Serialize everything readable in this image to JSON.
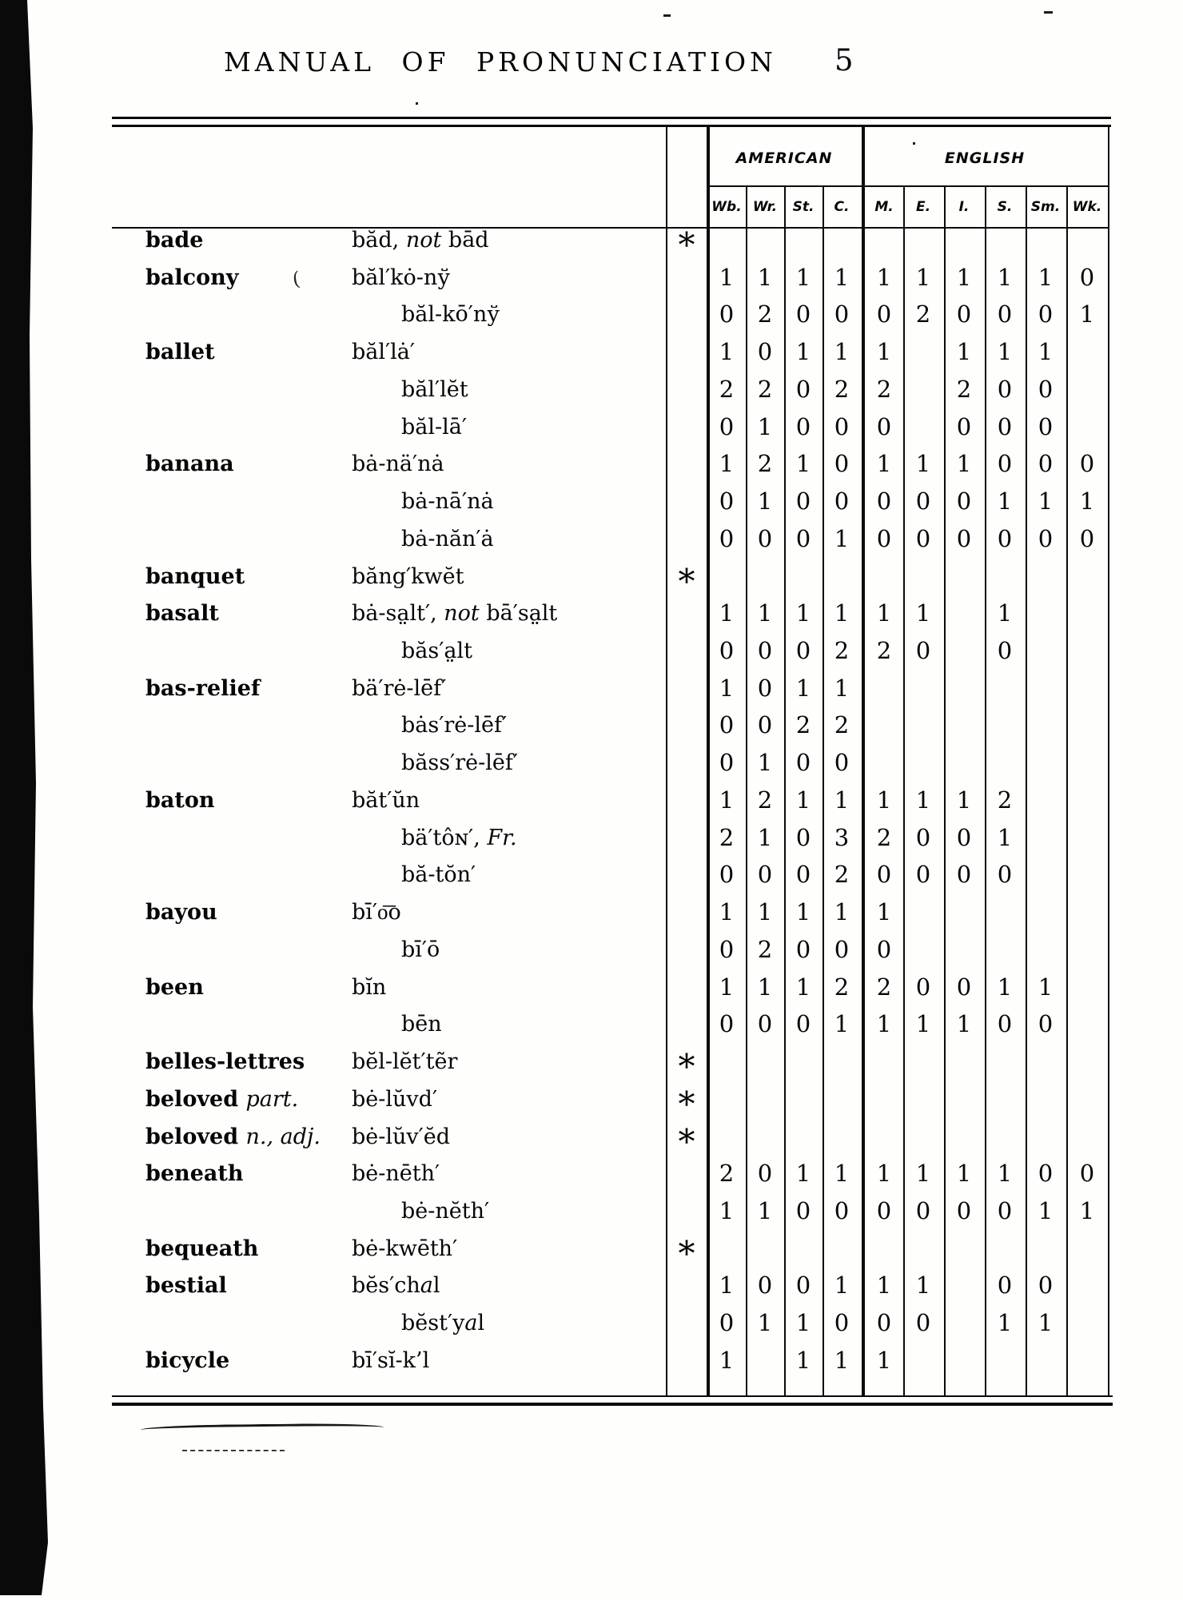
{
  "page": {
    "title": "MANUAL OF PRONUNCIATION",
    "page_number": "5"
  },
  "table": {
    "star_symbol": "*",
    "groups": [
      {
        "label": "AMERICAN",
        "span": 4
      },
      {
        "label": "ENGLISH",
        "span": 6
      }
    ],
    "columns": [
      "Wb.",
      "Wr.",
      "St.",
      "C.",
      "M.",
      "E.",
      "I.",
      "S.",
      "Sm.",
      "Wk."
    ],
    "rows": [
      {
        "word": "bade",
        "pron": "băd, *not* bād",
        "star": true,
        "vals": [
          "",
          "",
          "",
          "",
          "",
          "",
          "",
          "",
          "",
          ""
        ]
      },
      {
        "word": "balcony",
        "stray": "(",
        "pron": "băl′kȯ-nў",
        "vals": [
          "1",
          "1",
          "1",
          "1",
          "1",
          "1",
          "1",
          "1",
          "1",
          "0"
        ]
      },
      {
        "word": "",
        "indent": true,
        "pron": "băl-kō′nў",
        "vals": [
          "0",
          "2",
          "0",
          "0",
          "0",
          "2",
          "0",
          "0",
          "0",
          "1"
        ]
      },
      {
        "word": "ballet",
        "pron": "băl′lȧ′",
        "vals": [
          "1",
          "0",
          "1",
          "1",
          "1",
          "",
          "1",
          "1",
          "1",
          ""
        ]
      },
      {
        "word": "",
        "indent": true,
        "pron": "băl′lĕt",
        "vals": [
          "2",
          "2",
          "0",
          "2",
          "2",
          "",
          "2",
          "0",
          "0",
          ""
        ]
      },
      {
        "word": "",
        "indent": true,
        "pron": "băl-lā′",
        "vals": [
          "0",
          "1",
          "0",
          "0",
          "0",
          "",
          "0",
          "0",
          "0",
          ""
        ]
      },
      {
        "word": "banana",
        "pron": "bȧ-nä′nȧ",
        "vals": [
          "1",
          "2",
          "1",
          "0",
          "1",
          "1",
          "1",
          "0",
          "0",
          "0"
        ]
      },
      {
        "word": "",
        "indent": true,
        "pron": "bȧ-nā′nȧ",
        "vals": [
          "0",
          "1",
          "0",
          "0",
          "0",
          "0",
          "0",
          "1",
          "1",
          "1"
        ]
      },
      {
        "word": "",
        "indent": true,
        "pron": "bȧ-năn′ȧ",
        "vals": [
          "0",
          "0",
          "0",
          "1",
          "0",
          "0",
          "0",
          "0",
          "0",
          "0"
        ]
      },
      {
        "word": "banquet",
        "pron": "băng′kwĕt",
        "star": true,
        "vals": [
          "",
          "",
          "",
          "",
          "",
          "",
          "",
          "",
          "",
          ""
        ]
      },
      {
        "word": "basalt",
        "pron": "bȧ-sa̤lt′, *not* bā′sa̤lt",
        "vals": [
          "1",
          "1",
          "1",
          "1",
          "1",
          "1",
          "",
          "1",
          "",
          ""
        ]
      },
      {
        "word": "",
        "indent": true,
        "pron": "băs′a̤lt",
        "vals": [
          "0",
          "0",
          "0",
          "2",
          "2",
          "0",
          "",
          "0",
          "",
          ""
        ]
      },
      {
        "word": "bas-relief",
        "pron": "bä′rė-lēf′",
        "vals": [
          "1",
          "0",
          "1",
          "1",
          "",
          "",
          "",
          "",
          "",
          ""
        ]
      },
      {
        "word": "",
        "indent": true,
        "pron": "bȧs′rė-lēf′",
        "vals": [
          "0",
          "0",
          "2",
          "2",
          "",
          "",
          "",
          "",
          "",
          ""
        ]
      },
      {
        "word": "",
        "indent": true,
        "pron": "băss′rė-lēf′",
        "vals": [
          "0",
          "1",
          "0",
          "0",
          "",
          "",
          "",
          "",
          "",
          ""
        ]
      },
      {
        "word": "baton",
        "pron": "băt′ŭn",
        "vals": [
          "1",
          "2",
          "1",
          "1",
          "1",
          "1",
          "1",
          "2",
          "",
          ""
        ]
      },
      {
        "word": "",
        "indent": true,
        "pron": "bä′tôɴ′, *Fr.*",
        "vals": [
          "2",
          "1",
          "0",
          "3",
          "2",
          "0",
          "0",
          "1",
          "",
          ""
        ]
      },
      {
        "word": "",
        "indent": true,
        "pron": "bă-tŏn′",
        "vals": [
          "0",
          "0",
          "0",
          "2",
          "0",
          "0",
          "0",
          "0",
          "",
          ""
        ]
      },
      {
        "word": "bayou",
        "pron": "bī′o͞o",
        "vals": [
          "1",
          "1",
          "1",
          "1",
          "1",
          "",
          "",
          "",
          "",
          ""
        ]
      },
      {
        "word": "",
        "indent": true,
        "pron": "bī′ō",
        "vals": [
          "0",
          "2",
          "0",
          "0",
          "0",
          "",
          "",
          "",
          "",
          ""
        ]
      },
      {
        "word": "been",
        "pron": "bĭn",
        "vals": [
          "1",
          "1",
          "1",
          "2",
          "2",
          "0",
          "0",
          "1",
          "1",
          ""
        ]
      },
      {
        "word": "",
        "indent": true,
        "pron": "bēn",
        "vals": [
          "0",
          "0",
          "0",
          "1",
          "1",
          "1",
          "1",
          "0",
          "0",
          ""
        ]
      },
      {
        "word": "belles-lettres",
        "pron": "bĕl-lĕt′tẽr",
        "star": true,
        "vals": [
          "",
          "",
          "",
          "",
          "",
          "",
          "",
          "",
          "",
          ""
        ]
      },
      {
        "word": "beloved *part.*",
        "pron": "bė-lŭvd′",
        "star": true,
        "vals": [
          "",
          "",
          "",
          "",
          "",
          "",
          "",
          "",
          "",
          ""
        ]
      },
      {
        "word": "beloved *n., adj.*",
        "pron": "bė-lŭv′ĕd",
        "star": true,
        "vals": [
          "",
          "",
          "",
          "",
          "",
          "",
          "",
          "",
          "",
          ""
        ]
      },
      {
        "word": "beneath",
        "pron": "bė-nēth′",
        "vals": [
          "2",
          "0",
          "1",
          "1",
          "1",
          "1",
          "1",
          "1",
          "0",
          "0"
        ]
      },
      {
        "word": "",
        "indent": true,
        "pron": "bė-nĕth′",
        "vals": [
          "1",
          "1",
          "0",
          "0",
          "0",
          "0",
          "0",
          "0",
          "1",
          "1"
        ]
      },
      {
        "word": "bequeath",
        "pron": "bė-kwēth′",
        "star": true,
        "vals": [
          "",
          "",
          "",
          "",
          "",
          "",
          "",
          "",
          "",
          ""
        ]
      },
      {
        "word": "bestial",
        "pron": "bĕs′ch*a*l",
        "vals": [
          "1",
          "0",
          "0",
          "1",
          "1",
          "1",
          "",
          "0",
          "0",
          ""
        ]
      },
      {
        "word": "",
        "indent": true,
        "pron": "bĕst′y*a*l",
        "vals": [
          "0",
          "1",
          "1",
          "0",
          "0",
          "0",
          "",
          "1",
          "1",
          ""
        ]
      },
      {
        "word": "bicycle",
        "pron": "bī′sĭ-k’l",
        "vals": [
          "1",
          "",
          "1",
          "1",
          "1",
          "",
          "",
          "",
          "",
          ""
        ]
      }
    ]
  }
}
